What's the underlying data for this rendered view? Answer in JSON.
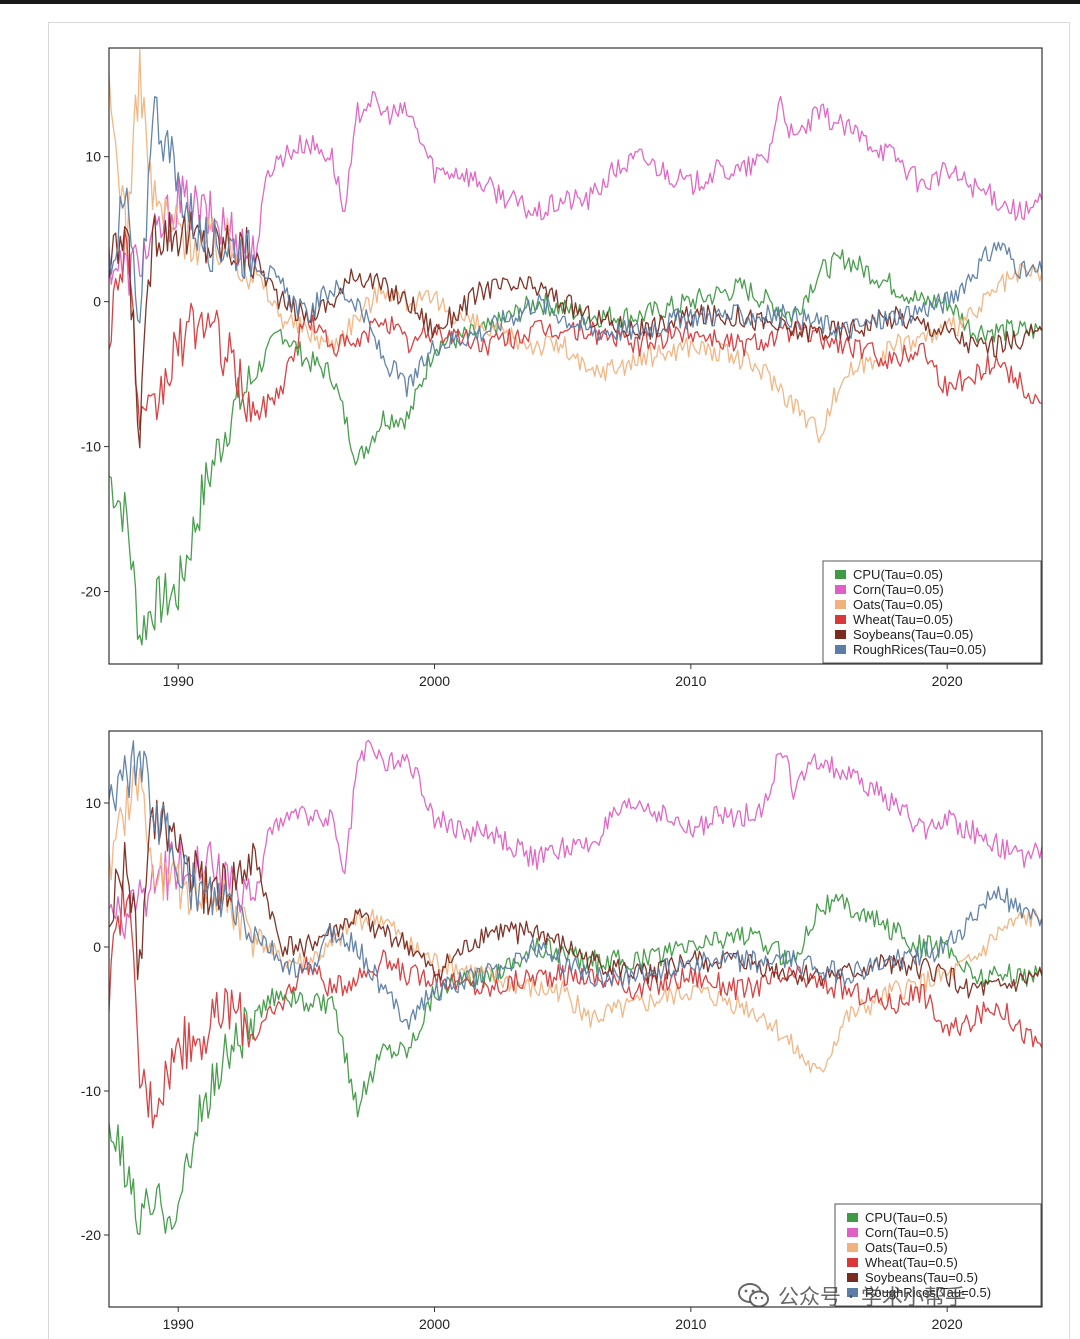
{
  "watermark": {
    "text": "公众号 · 学术小帮手",
    "icon": "wechat-logo-icon"
  },
  "colors": {
    "CPU": "#3f9a45",
    "Corn": "#e05fc4",
    "Oats": "#f2b27e",
    "Wheat": "#d8383a",
    "Soybeans": "#7a2a1e",
    "RoughRices": "#5b7da6"
  },
  "chart_data": [
    {
      "type": "line",
      "title": "",
      "xlabel": "",
      "ylabel": "",
      "x_ticks": [
        "1990",
        "2000",
        "2010",
        "2020"
      ],
      "y_ticks": [
        "10",
        "0",
        "-10",
        "-20"
      ],
      "xlim": [
        1987.3,
        2023.7
      ],
      "ylim": [
        -25,
        17.5
      ],
      "legend_position": "bottom-right",
      "grid": false,
      "series": [
        {
          "name": "CPU(Tau=0.05)",
          "key": "CPU",
          "x": [
            1987.3,
            1988,
            1988.5,
            1989,
            1990,
            1991,
            1992,
            1993,
            1994,
            1995,
            1996,
            1997,
            1998,
            1999,
            2000,
            2002,
            2004,
            2006,
            2008,
            2010,
            2012,
            2014,
            2015,
            2016,
            2018,
            2019,
            2020,
            2021,
            2022,
            2023.7
          ],
          "y": [
            -12,
            -15,
            -23,
            -21,
            -20,
            -13,
            -8,
            -5,
            -2,
            -4,
            -5,
            -11,
            -8,
            -8,
            -3,
            -2,
            0,
            -1,
            -1,
            0,
            1,
            -1,
            2,
            3,
            1,
            0,
            0,
            -2,
            -2,
            -2
          ]
        },
        {
          "name": "Corn(Tau=0.05)",
          "key": "Corn",
          "x": [
            1987.3,
            1988,
            1989,
            1990,
            1991,
            1992,
            1993,
            1993.5,
            1994,
            1995,
            1996,
            1996.5,
            1997,
            1997.5,
            1998,
            1999,
            2000,
            2001,
            2002,
            2003,
            2004,
            2005,
            2006,
            2007,
            2008,
            2009,
            2010,
            2011,
            2012,
            2013,
            2013.5,
            2014,
            2015,
            2016,
            2017,
            2018,
            2019,
            2020,
            2021,
            2022,
            2023,
            2023.7
          ],
          "y": [
            3,
            2,
            4,
            7,
            6,
            5,
            3,
            9,
            10,
            11,
            10,
            6,
            13,
            14,
            13,
            13,
            9,
            9,
            8,
            7,
            6,
            7,
            7,
            9,
            10,
            9,
            8,
            9,
            9,
            10,
            14,
            11,
            13,
            12,
            11,
            10,
            8,
            9,
            8,
            7,
            6,
            7
          ]
        },
        {
          "name": "Oats(Tau=0.05)",
          "key": "Oats",
          "x": [
            1987.3,
            1988,
            1988.5,
            1989,
            1990,
            1991,
            1992,
            1993,
            1994,
            1995,
            1996,
            1997,
            1998,
            1999,
            2000,
            2002,
            2004,
            2005,
            2006,
            2008,
            2010,
            2012,
            2013,
            2014,
            2015,
            2016,
            2018,
            2020,
            2021,
            2022,
            2023,
            2023.7
          ],
          "y": [
            14,
            5,
            16,
            7,
            5,
            4,
            4,
            2,
            -1,
            -2,
            -3,
            -1,
            1,
            0,
            0,
            -2,
            -3,
            -3,
            -5,
            -4,
            -3,
            -4,
            -5,
            -7,
            -9,
            -5,
            -3,
            -2,
            -1,
            1,
            2,
            2
          ]
        },
        {
          "name": "Wheat(Tau=0.05)",
          "key": "Wheat",
          "x": [
            1987.3,
            1988,
            1988.5,
            1989,
            1990,
            1991,
            1992,
            1993,
            1994,
            1995,
            1996,
            1997,
            1998,
            1999,
            2000,
            2002,
            2004,
            2006,
            2008,
            2010,
            2012,
            2014,
            2016,
            2018,
            2019,
            2020,
            2021,
            2022,
            2023,
            2023.7
          ],
          "y": [
            -2,
            5,
            -9,
            -8,
            -3,
            -1,
            -4,
            -8,
            -6,
            -1,
            -3,
            -3,
            -1,
            -3,
            -2,
            -3,
            -2,
            -2,
            -3,
            -2,
            -3,
            -2,
            -3,
            -4,
            -3,
            -6,
            -5,
            -4,
            -6,
            -7
          ]
        },
        {
          "name": "Soybeans(Tau=0.05)",
          "key": "Soybeans",
          "x": [
            1987.3,
            1988,
            1988.5,
            1989,
            1990,
            1991,
            1992,
            1993,
            1994,
            1995,
            1996,
            1997,
            1998,
            1999,
            2000,
            2002,
            2004,
            2006,
            2008,
            2010,
            2012,
            2014,
            2016,
            2018,
            2020,
            2021,
            2022,
            2023.7
          ],
          "y": [
            2,
            5,
            -9,
            5,
            5,
            4,
            4,
            3,
            0,
            -1,
            0,
            2,
            1,
            0,
            -2,
            1,
            1,
            -1,
            -2,
            -1,
            -1,
            -2,
            -2,
            -1,
            -2,
            -3,
            -3,
            -2
          ]
        },
        {
          "name": "RoughRices(Tau=0.05)",
          "key": "RoughRices",
          "x": [
            1987.3,
            1988,
            1988.5,
            1989,
            1990,
            1991,
            1992,
            1993,
            1994,
            1995,
            1996,
            1997,
            1998,
            1999,
            2000,
            2002,
            2004,
            2006,
            2008,
            2010,
            2012,
            2014,
            2016,
            2018,
            2020,
            2021,
            2022,
            2023,
            2023.7
          ],
          "y": [
            3,
            7,
            -3,
            14,
            8,
            4,
            4,
            3,
            1,
            -1,
            1,
            0,
            -4,
            -6,
            -3,
            -2,
            0,
            -2,
            -2,
            -1,
            -1,
            -1,
            -2,
            -1,
            0,
            2,
            4,
            2,
            2
          ]
        }
      ]
    },
    {
      "type": "line",
      "title": "",
      "xlabel": "",
      "ylabel": "",
      "x_ticks": [
        "1990",
        "2000",
        "2010",
        "2020"
      ],
      "y_ticks": [
        "10",
        "0",
        "-10",
        "-20"
      ],
      "xlim": [
        1987.3,
        2023.7
      ],
      "ylim": [
        -25,
        15
      ],
      "legend_position": "bottom-right",
      "grid": false,
      "series": [
        {
          "name": "CPU(Tau=0.5)",
          "key": "CPU",
          "x": [
            1987.3,
            1988,
            1988.5,
            1989,
            1990,
            1991,
            1992,
            1993,
            1994,
            1995,
            1996,
            1997,
            1998,
            1999,
            2000,
            2002,
            2004,
            2006,
            2008,
            2010,
            2012,
            2014,
            2015,
            2016,
            2018,
            2019,
            2020,
            2021,
            2022,
            2023.7
          ],
          "y": [
            -12,
            -16,
            -19,
            -18,
            -18,
            -11,
            -7,
            -5,
            -3,
            -4,
            -4,
            -11,
            -7,
            -7,
            -3,
            -2,
            0,
            -1,
            -1,
            0,
            1,
            -1,
            3,
            3,
            1,
            0,
            0,
            -2,
            -2,
            -2
          ]
        },
        {
          "name": "Corn(Tau=0.5)",
          "key": "Corn",
          "x": [
            1987.3,
            1988,
            1989,
            1990,
            1991,
            1992,
            1993,
            1993.5,
            1994,
            1995,
            1996,
            1996.5,
            1997,
            1997.5,
            1998,
            1999,
            2000,
            2001,
            2002,
            2003,
            2004,
            2005,
            2006,
            2007,
            2008,
            2009,
            2010,
            2011,
            2012,
            2013,
            2013.5,
            2014,
            2015,
            2016,
            2017,
            2018,
            2019,
            2020,
            2021,
            2022,
            2023,
            2023.7
          ],
          "y": [
            2,
            2,
            4,
            6,
            6,
            4,
            3,
            8,
            9,
            9,
            9,
            5,
            13,
            14,
            13,
            13,
            9,
            8,
            8,
            7,
            6,
            7,
            7,
            9,
            10,
            9,
            8,
            9,
            9,
            10,
            14,
            11,
            13,
            12,
            11,
            10,
            8,
            9,
            8,
            7,
            6,
            7
          ]
        },
        {
          "name": "Oats(Tau=0.5)",
          "key": "Oats",
          "x": [
            1987.3,
            1988,
            1988.5,
            1989,
            1990,
            1991,
            1992,
            1993,
            1994,
            1995,
            1996,
            1997,
            1998,
            1999,
            2000,
            2002,
            2004,
            2005,
            2006,
            2008,
            2010,
            2012,
            2013,
            2014,
            2015,
            2016,
            2018,
            2020,
            2021,
            2022,
            2023,
            2023.7
          ],
          "y": [
            5,
            10,
            12,
            5,
            4,
            4,
            3,
            1,
            -1,
            -1,
            0,
            2,
            2,
            0,
            -1,
            -2,
            -3,
            -3,
            -5,
            -4,
            -3,
            -4,
            -5,
            -7,
            -9,
            -5,
            -3,
            -2,
            -1,
            1,
            2,
            2
          ]
        },
        {
          "name": "Wheat(Tau=0.5)",
          "key": "Wheat",
          "x": [
            1987.3,
            1988,
            1988.5,
            1989,
            1990,
            1991,
            1992,
            1993,
            1994,
            1995,
            1996,
            1997,
            1998,
            1999,
            2000,
            2002,
            2004,
            2006,
            2008,
            2010,
            2012,
            2014,
            2016,
            2018,
            2019,
            2020,
            2021,
            2022,
            2023,
            2023.7
          ],
          "y": [
            -3,
            5,
            -9,
            -11,
            -7,
            -6,
            -4,
            -6,
            -4,
            -1,
            -3,
            -2,
            -1,
            -2,
            -2,
            -3,
            -2,
            -2,
            -3,
            -2,
            -3,
            -2,
            -3,
            -4,
            -3,
            -6,
            -5,
            -4,
            -6,
            -7
          ]
        },
        {
          "name": "Soybeans(Tau=0.5)",
          "key": "Soybeans",
          "x": [
            1987.3,
            1988,
            1988.5,
            1989,
            1990,
            1991,
            1992,
            1993,
            1994,
            1995,
            1996,
            1997,
            1998,
            1999,
            2000,
            2002,
            2004,
            2006,
            2008,
            2010,
            2012,
            2014,
            2016,
            2018,
            2020,
            2021,
            2022,
            2023.7
          ],
          "y": [
            2,
            6,
            -2,
            9,
            7,
            4,
            4,
            6,
            0,
            0,
            1,
            2,
            1,
            0,
            -2,
            1,
            1,
            -1,
            -2,
            -1,
            -1,
            -2,
            -2,
            -1,
            -2,
            -3,
            -3,
            -2
          ]
        },
        {
          "name": "RoughRices(Tau=0.5)",
          "key": "RoughRices",
          "x": [
            1987.3,
            1988,
            1988.5,
            1989,
            1990,
            1991,
            1992,
            1993,
            1994,
            1995,
            1996,
            1997,
            1998,
            1999,
            2000,
            2002,
            2004,
            2006,
            2008,
            2010,
            2012,
            2014,
            2016,
            2018,
            2020,
            2021,
            2022,
            2023,
            2023.7
          ],
          "y": [
            10,
            12,
            13,
            10,
            6,
            3,
            3,
            1,
            -1,
            -2,
            1,
            0,
            -3,
            -5,
            -3,
            -2,
            0,
            -2,
            -2,
            -1,
            -1,
            -1,
            -2,
            -1,
            0,
            2,
            4,
            2,
            2
          ]
        }
      ]
    }
  ]
}
